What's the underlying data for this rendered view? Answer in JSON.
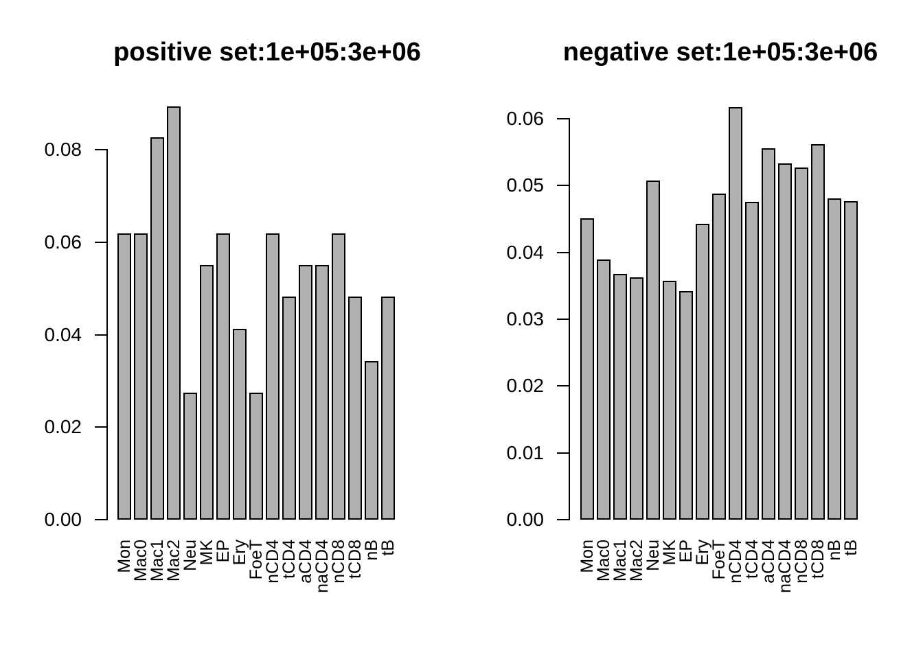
{
  "figure": {
    "background_color": "#ffffff",
    "bar_fill_color": "#b0b0b0",
    "bar_border_color": "#000000"
  },
  "chart_data": [
    {
      "type": "bar",
      "title": "positive set:1e+05:3e+06",
      "categories": [
        "Mon",
        "Mac0",
        "Mac1",
        "Mac2",
        "Neu",
        "MK",
        "EP",
        "Ery",
        "FoeT",
        "nCD4",
        "tCD4",
        "aCD4",
        "naCD4",
        "nCD8",
        "tCD8",
        "nB",
        "tB"
      ],
      "values": [
        0.0619,
        0.0619,
        0.0827,
        0.0894,
        0.0275,
        0.0551,
        0.0619,
        0.0412,
        0.0275,
        0.0619,
        0.0482,
        0.0551,
        0.0551,
        0.0619,
        0.0482,
        0.0343,
        0.0482
      ],
      "xlabel": "",
      "ylabel": "",
      "ylim": [
        0,
        0.09
      ],
      "y_ticks": [
        0,
        0.02,
        0.04,
        0.06,
        0.08
      ],
      "y_tick_labels": [
        "0.00",
        "0.02",
        "0.04",
        "0.06",
        "0.08"
      ],
      "x_tick_rotation": 90,
      "grid": false,
      "legend": "none",
      "bar_color": "#b0b0b0",
      "bar_border": "#000000"
    },
    {
      "type": "bar",
      "title": "negative set:1e+05:3e+06",
      "categories": [
        "Mon",
        "Mac0",
        "Mac1",
        "Mac2",
        "Neu",
        "MK",
        "EP",
        "Ery",
        "FoeT",
        "nCD4",
        "tCD4",
        "aCD4",
        "naCD4",
        "nCD8",
        "tCD8",
        "nB",
        "tB"
      ],
      "values": [
        0.0451,
        0.0389,
        0.0368,
        0.0363,
        0.0508,
        0.0358,
        0.0342,
        0.0443,
        0.0488,
        0.0617,
        0.0476,
        0.0556,
        0.0533,
        0.0527,
        0.0562,
        0.0481,
        0.0477
      ],
      "xlabel": "",
      "ylabel": "",
      "ylim": [
        0,
        0.062
      ],
      "y_ticks": [
        0,
        0.01,
        0.02,
        0.03,
        0.04,
        0.05,
        0.06
      ],
      "y_tick_labels": [
        "0.00",
        "0.01",
        "0.02",
        "0.03",
        "0.04",
        "0.05",
        "0.06"
      ],
      "x_tick_rotation": 90,
      "grid": false,
      "legend": "none",
      "bar_color": "#b0b0b0",
      "bar_border": "#000000"
    }
  ]
}
